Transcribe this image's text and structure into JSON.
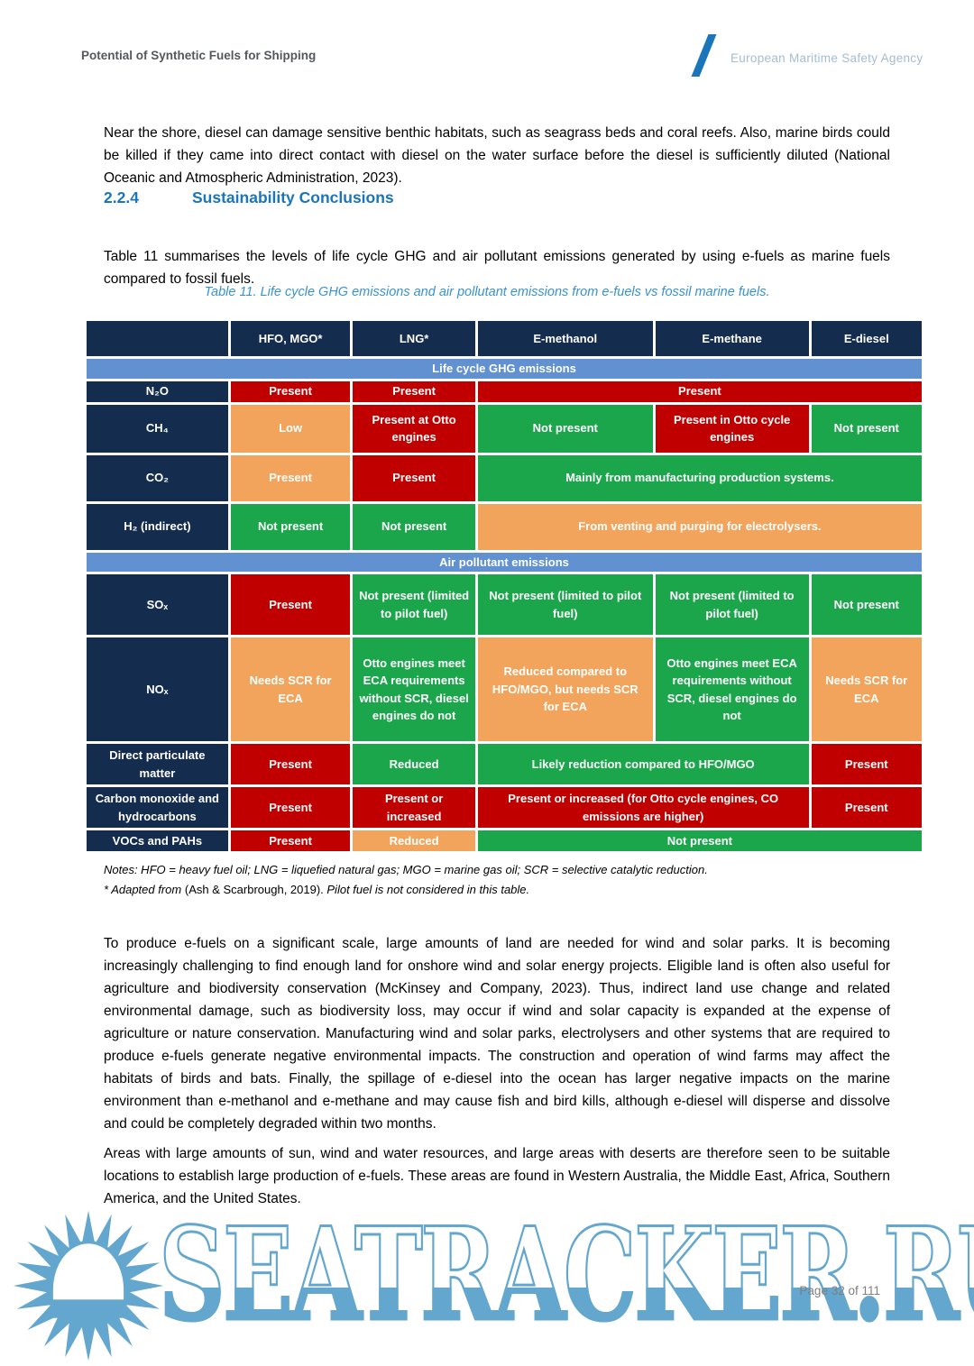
{
  "header": {
    "doc_title": "Potential of Synthetic Fuels for Shipping",
    "agency": "European Maritime Safety Agency"
  },
  "section": {
    "number": "2.2.4",
    "title": "Sustainability Conclusions"
  },
  "paragraphs": {
    "p1": "Near the shore, diesel can damage sensitive benthic habitats, such as seagrass beds and coral reefs. Also, marine birds could be killed if they came into direct contact with diesel on the water surface before the diesel is sufficiently diluted (National Oceanic and Atmospheric Administration, 2023).",
    "p2": "Table 11 summarises the levels of life cycle GHG and air pollutant emissions generated by using e-fuels as marine fuels compared to fossil fuels.",
    "p3": "To produce e-fuels on a significant scale, large amounts of land are needed for wind and solar parks. It is becoming increasingly challenging to find enough land for onshore wind and solar energy projects. Eligible land is often also useful for agriculture and biodiversity conservation (McKinsey and Company, 2023). Thus, indirect land use change and related environmental damage, such as biodiversity loss, may occur if wind and solar capacity is expanded at the expense of agriculture or nature conservation. Manufacturing wind and solar parks, electrolysers and other systems that are required to produce e-fuels generate negative environmental impacts. The construction and operation of wind farms may affect the habitats of birds and bats. Finally, the spillage of e-diesel into the ocean has larger negative impacts on the marine environment than e-methanol and e-methane and may cause fish and bird kills, although e-diesel will disperse and dissolve and could be completely degraded within two months.",
    "p4": "Areas with large amounts of sun, wind and water resources, and large areas with deserts are therefore seen to be suitable locations to establish large production of e-fuels. These areas are found in Western Australia, the Middle East, Africa, Southern America, and the United States."
  },
  "table": {
    "caption": "Table 11. Life cycle GHG emissions and air pollutant emissions from e-fuels vs fossil marine fuels.",
    "columns": [
      "",
      "HFO, MGO*",
      "LNG*",
      "E-methanol",
      "E-methane",
      "E-diesel"
    ],
    "sections": [
      {
        "band": "Life cycle GHG emissions",
        "rows": [
          {
            "label": "N₂O",
            "cells": [
              {
                "text": "Present",
                "color": "red"
              },
              {
                "text": "Present",
                "color": "red"
              },
              {
                "text": "Present",
                "color": "red",
                "span": 3
              }
            ]
          },
          {
            "label": "CH₄",
            "cells": [
              {
                "text": "Low",
                "color": "orange"
              },
              {
                "text": "Present at Otto engines",
                "color": "red"
              },
              {
                "text": "Not present",
                "color": "green"
              },
              {
                "text": "Present in Otto cycle engines",
                "color": "red"
              },
              {
                "text": "Not present",
                "color": "green"
              }
            ]
          },
          {
            "label": "CO₂",
            "cells": [
              {
                "text": "Present",
                "color": "orange"
              },
              {
                "text": "Present",
                "color": "red"
              },
              {
                "text": "Mainly from manufacturing production systems.",
                "color": "green",
                "span": 3
              }
            ]
          },
          {
            "label": "H₂ (indirect)",
            "cells": [
              {
                "text": "Not present",
                "color": "green"
              },
              {
                "text": "Not present",
                "color": "green"
              },
              {
                "text": "From venting and purging for electrolysers.",
                "color": "orange",
                "span": 3
              }
            ]
          }
        ]
      },
      {
        "band": "Air pollutant emissions",
        "rows": [
          {
            "label": "SOₓ",
            "cells": [
              {
                "text": "Present",
                "color": "red"
              },
              {
                "text": "Not present (limited to pilot fuel)",
                "color": "green"
              },
              {
                "text": "Not present (limited to pilot fuel)",
                "color": "green"
              },
              {
                "text": "Not present (limited to pilot fuel)",
                "color": "green"
              },
              {
                "text": "Not present",
                "color": "green"
              }
            ]
          },
          {
            "label": "NOₓ",
            "cells": [
              {
                "text": "Needs SCR for ECA",
                "color": "orange"
              },
              {
                "text": "Otto engines meet ECA requirements without SCR, diesel engines do not",
                "color": "green"
              },
              {
                "text": "Reduced compared to HFO/MGO, but needs SCR for ECA",
                "color": "orange"
              },
              {
                "text": "Otto engines meet ECA requirements without SCR, diesel engines do not",
                "color": "green"
              },
              {
                "text": "Needs SCR for ECA",
                "color": "orange"
              }
            ]
          },
          {
            "label": "Direct particulate matter",
            "cells": [
              {
                "text": "Present",
                "color": "red"
              },
              {
                "text": "Reduced",
                "color": "green"
              },
              {
                "text": "Likely reduction compared to HFO/MGO",
                "color": "green",
                "span": 2
              },
              {
                "text": "Present",
                "color": "red"
              }
            ]
          },
          {
            "label": "Carbon monoxide and hydrocarbons",
            "cells": [
              {
                "text": "Present",
                "color": "red"
              },
              {
                "text": "Present or increased",
                "color": "red"
              },
              {
                "text": "Present or increased (for Otto cycle engines, CO emissions are higher)",
                "color": "red",
                "span": 2
              },
              {
                "text": "Present",
                "color": "red"
              }
            ]
          },
          {
            "label": "VOCs and PAHs",
            "cells": [
              {
                "text": "Present",
                "color": "red"
              },
              {
                "text": "Reduced",
                "color": "orange"
              },
              {
                "text": "Not present",
                "color": "green",
                "span": 3
              }
            ]
          }
        ]
      }
    ]
  },
  "notes": {
    "line1": "Notes: HFO = heavy fuel oil; LNG = liquefied natural gas; MGO = marine gas oil; SCR = selective catalytic reduction.",
    "line2_italic_a": "* Adapted from ",
    "line2_regular": "(Ash & Scarbrough, 2019). ",
    "line2_italic_b": "Pilot fuel is not considered in this table."
  },
  "watermark": {
    "text": "SEATRACKER.RU",
    "icon": "sun-logo-icon"
  },
  "footer": {
    "page_number": "Page 32 of 111"
  },
  "colors": {
    "navy_header": "#142c4e",
    "status_red": "#c00000",
    "status_green": "#1ca64c",
    "status_orange": "#f2a45c",
    "band_blue": "#6191d1",
    "heading_blue": "#1b75bb",
    "caption_blue": "#3992cf",
    "watermark_blue": "#64a7ce",
    "page_number_gray": "#7f7f7f"
  }
}
